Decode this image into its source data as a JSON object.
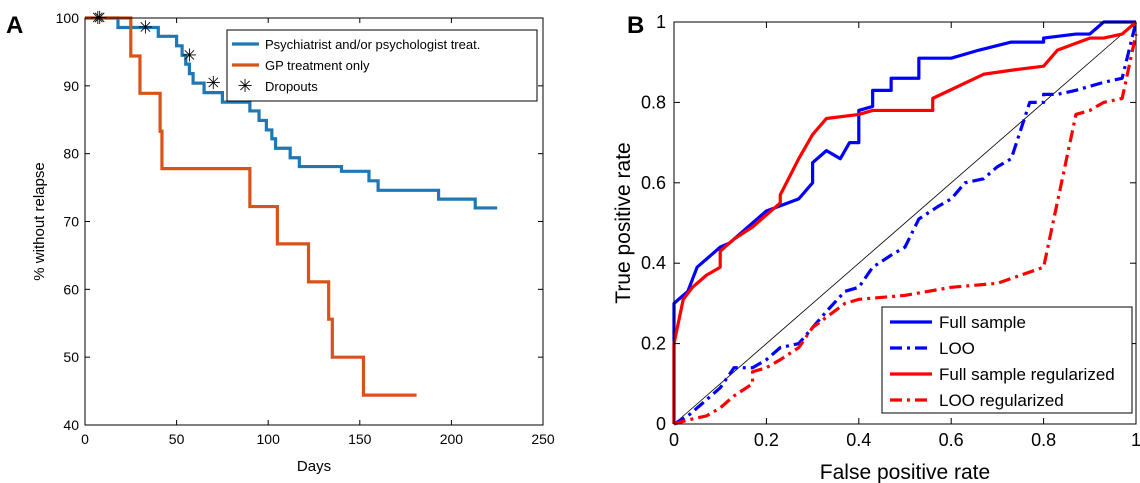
{
  "chart_data": [
    {
      "type": "line",
      "panel_label": "A",
      "xlabel": "Days",
      "ylabel": "% without relapse",
      "xlim": [
        0,
        250
      ],
      "ylim": [
        40,
        100
      ],
      "xticks": [
        0,
        50,
        100,
        150,
        200,
        250
      ],
      "yticks": [
        40,
        50,
        60,
        70,
        80,
        90,
        100
      ],
      "grid": false,
      "legend_position": "top-right",
      "series": [
        {
          "name": "Psychiatrist and/or psychologist treat.",
          "color": "#1f77b4",
          "style": "step",
          "x": [
            0,
            18,
            31,
            40,
            50,
            53,
            55,
            57,
            59,
            61,
            65,
            70,
            75,
            80,
            90,
            95,
            99,
            102,
            104,
            112,
            117,
            120,
            130,
            140,
            155,
            160,
            165,
            180,
            193,
            213,
            225
          ],
          "y": [
            100,
            98.6,
            98.6,
            97.3,
            95.9,
            94.5,
            93.2,
            91.8,
            90.4,
            90.4,
            89.0,
            89.0,
            87.6,
            87.6,
            86.3,
            84.9,
            83.5,
            82.2,
            80.8,
            79.4,
            78.1,
            78.1,
            78.1,
            77.4,
            76.0,
            74.6,
            74.6,
            74.6,
            73.3,
            72.0,
            72.0
          ]
        },
        {
          "name": "GP treatment only",
          "color": "#d95319",
          "style": "step",
          "x": [
            0,
            25,
            30,
            41,
            42,
            52,
            90,
            105,
            122,
            133,
            135,
            152,
            181
          ],
          "y": [
            100,
            94.4,
            88.9,
            83.3,
            77.8,
            77.8,
            72.2,
            66.7,
            61.1,
            55.6,
            50.0,
            44.4,
            44.4
          ]
        }
      ],
      "dropouts": {
        "name": "Dropouts",
        "marker": "✳",
        "x": [
          7,
          8,
          33,
          57,
          70
        ],
        "y": [
          100,
          100,
          98.6,
          94.5,
          90.4
        ]
      }
    },
    {
      "type": "line",
      "panel_label": "B",
      "xlabel": "False positive rate",
      "ylabel": "True positive rate",
      "xlim": [
        0,
        1
      ],
      "ylim": [
        0,
        1
      ],
      "xticks": [
        0,
        0.2,
        0.4,
        0.6,
        0.8,
        1
      ],
      "ytick_labels": [
        "0",
        "0.2",
        "0.4",
        "0.6",
        "0.8",
        "1"
      ],
      "xtick_labels": [
        "0",
        "0.2",
        "0.4",
        "0.6",
        "0.8",
        "1"
      ],
      "grid": false,
      "legend_position": "bottom-right",
      "diagonal_reference": true,
      "series": [
        {
          "name": "Full sample",
          "color": "#0000ff",
          "dash": "solid",
          "x": [
            0,
            0,
            0.01,
            0.03,
            0.05,
            0.05,
            0.08,
            0.1,
            0.12,
            0.18,
            0.2,
            0.27,
            0.3,
            0.3,
            0.33,
            0.36,
            0.38,
            0.4,
            0.4,
            0.43,
            0.43,
            0.47,
            0.47,
            0.53,
            0.53,
            0.6,
            0.66,
            0.73,
            0.8,
            0.8,
            0.87,
            0.9,
            0.93,
            1
          ],
          "y": [
            0,
            0.3,
            0.31,
            0.33,
            0.39,
            0.39,
            0.42,
            0.44,
            0.45,
            0.51,
            0.53,
            0.56,
            0.6,
            0.65,
            0.68,
            0.66,
            0.7,
            0.7,
            0.78,
            0.79,
            0.83,
            0.83,
            0.86,
            0.86,
            0.91,
            0.91,
            0.93,
            0.95,
            0.95,
            0.96,
            0.97,
            0.97,
            1,
            1
          ]
        },
        {
          "name": "LOO",
          "color": "#0000ff",
          "dash": "dash-dot",
          "x": [
            0,
            0.03,
            0.06,
            0.1,
            0.13,
            0.17,
            0.2,
            0.23,
            0.27,
            0.3,
            0.33,
            0.37,
            0.4,
            0.43,
            0.47,
            0.5,
            0.53,
            0.57,
            0.6,
            0.63,
            0.67,
            0.7,
            0.73,
            0.77,
            0.8,
            0.8,
            0.83,
            0.87,
            0.9,
            0.93,
            0.97,
            1
          ],
          "y": [
            0,
            0.02,
            0.05,
            0.09,
            0.14,
            0.14,
            0.16,
            0.19,
            0.2,
            0.24,
            0.28,
            0.33,
            0.34,
            0.39,
            0.42,
            0.44,
            0.51,
            0.54,
            0.56,
            0.6,
            0.61,
            0.64,
            0.66,
            0.8,
            0.8,
            0.82,
            0.82,
            0.83,
            0.84,
            0.85,
            0.86,
            1
          ]
        },
        {
          "name": "Full sample regularized",
          "color": "#ff0000",
          "dash": "solid",
          "x": [
            0,
            0,
            0.02,
            0.04,
            0.07,
            0.1,
            0.1,
            0.13,
            0.17,
            0.23,
            0.23,
            0.27,
            0.3,
            0.33,
            0.4,
            0.43,
            0.47,
            0.5,
            0.56,
            0.56,
            0.67,
            0.73,
            0.8,
            0.83,
            0.9,
            0.93,
            0.97,
            1
          ],
          "y": [
            0,
            0.2,
            0.31,
            0.34,
            0.37,
            0.39,
            0.43,
            0.46,
            0.49,
            0.55,
            0.57,
            0.66,
            0.72,
            0.76,
            0.77,
            0.78,
            0.78,
            0.78,
            0.78,
            0.81,
            0.87,
            0.88,
            0.89,
            0.93,
            0.96,
            0.96,
            0.97,
            1
          ]
        },
        {
          "name": "LOO regularized",
          "color": "#ff0000",
          "dash": "dash-dot",
          "x": [
            0,
            0.03,
            0.07,
            0.1,
            0.13,
            0.17,
            0.17,
            0.2,
            0.23,
            0.27,
            0.3,
            0.37,
            0.4,
            0.5,
            0.6,
            0.7,
            0.8,
            0.87,
            0.9,
            0.93,
            0.97,
            1
          ],
          "y": [
            0,
            0.01,
            0.02,
            0.04,
            0.07,
            0.1,
            0.13,
            0.14,
            0.16,
            0.19,
            0.24,
            0.3,
            0.31,
            0.32,
            0.34,
            0.35,
            0.39,
            0.77,
            0.78,
            0.8,
            0.81,
            0.97
          ]
        }
      ]
    }
  ]
}
